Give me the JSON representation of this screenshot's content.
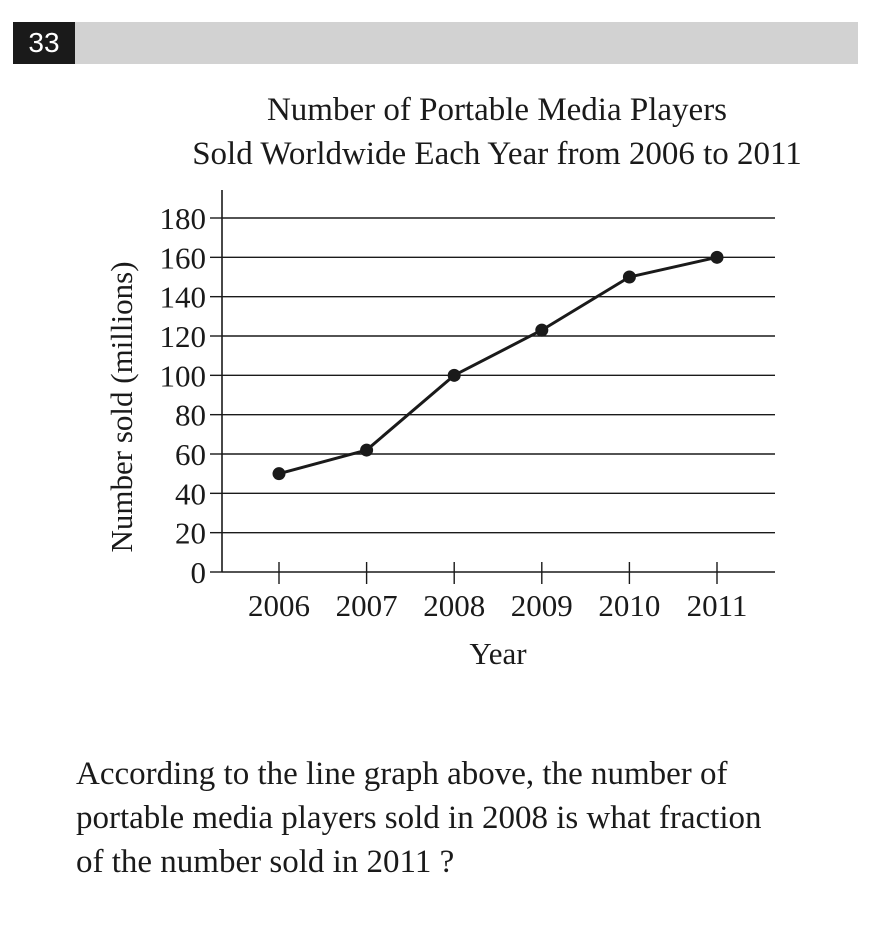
{
  "question_number": "33",
  "question": {
    "lines": [
      "According to the line graph above, the number of",
      "portable media players sold in 2008 is what fraction",
      "of the number sold in 2011 ?"
    ]
  },
  "chart_data": {
    "type": "line",
    "title": "Number of Portable Media Players",
    "subtitle": "Sold Worldwide Each Year from 2006 to 2011",
    "xlabel": "Year",
    "ylabel": "Number sold (millions)",
    "x": [
      "2006",
      "2007",
      "2008",
      "2009",
      "2010",
      "2011"
    ],
    "series": [
      {
        "values": [
          50,
          62,
          100,
          123,
          150,
          160
        ]
      }
    ],
    "ylim": [
      0,
      180
    ],
    "yticks": [
      0,
      20,
      40,
      60,
      80,
      100,
      120,
      140,
      160,
      180
    ],
    "grid": true,
    "legend": "none"
  }
}
